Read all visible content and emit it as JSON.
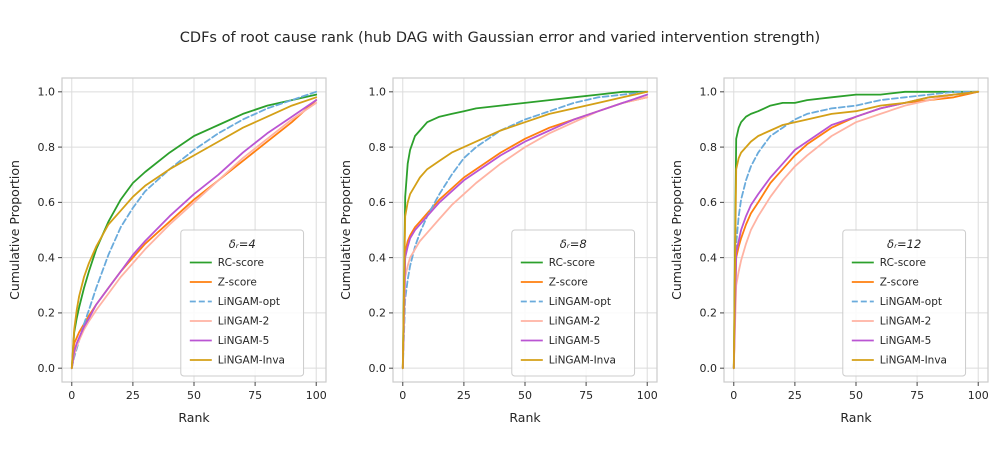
{
  "figure": {
    "title": "CDFs of root cause rank (hub DAG with Gaussian error and varied intervention strength)",
    "xlabel": "Rank",
    "ylabel": "Cumulative Proportion",
    "x_ticks": [
      0,
      25,
      50,
      75,
      100
    ],
    "x_tick_labels": [
      "0",
      "25",
      "50",
      "75",
      "100"
    ],
    "y_ticks": [
      0.0,
      0.2,
      0.4,
      0.6,
      0.8,
      1.0
    ],
    "y_tick_labels": [
      "0.0",
      "0.2",
      "0.4",
      "0.6",
      "0.8",
      "1.0"
    ],
    "grid_color": "#dcdcdc",
    "spine_color": "#cccccc",
    "text_color": "#262626",
    "background_color": "#ffffff"
  },
  "chart_data": {
    "type": "line",
    "note": "Empirical CDF curves; y values estimated from pixels at shared x ranks",
    "x": [
      0,
      1,
      2,
      3,
      5,
      7,
      10,
      15,
      20,
      25,
      30,
      40,
      50,
      60,
      70,
      80,
      90,
      100
    ],
    "xlim": [
      0,
      100
    ],
    "ylim": [
      0.0,
      1.0
    ],
    "grid": true,
    "legend_position": "lower-right-inside",
    "subplots": [
      {
        "legend_title": "δᵣ=4",
        "series": [
          {
            "name": "RC-score",
            "color": "#2ca02c",
            "dash": "solid",
            "y": [
              0.0,
              0.13,
              0.18,
              0.22,
              0.29,
              0.35,
              0.43,
              0.53,
              0.61,
              0.67,
              0.71,
              0.78,
              0.84,
              0.88,
              0.92,
              0.95,
              0.97,
              0.99
            ]
          },
          {
            "name": "Z-score",
            "color": "#ff7f0e",
            "dash": "solid",
            "y": [
              0.0,
              0.09,
              0.11,
              0.13,
              0.16,
              0.19,
              0.23,
              0.29,
              0.35,
              0.4,
              0.45,
              0.53,
              0.61,
              0.68,
              0.75,
              0.82,
              0.89,
              0.97
            ]
          },
          {
            "name": "LiNGAM-opt",
            "color": "#6aabdc",
            "dash": "dashed",
            "y": [
              0.0,
              0.04,
              0.07,
              0.1,
              0.16,
              0.21,
              0.29,
              0.41,
              0.51,
              0.58,
              0.64,
              0.72,
              0.79,
              0.85,
              0.9,
              0.94,
              0.97,
              1.0
            ]
          },
          {
            "name": "LiNGAM-2",
            "color": "#ffb3a3",
            "dash": "solid",
            "y": [
              0.0,
              0.05,
              0.08,
              0.1,
              0.14,
              0.17,
              0.21,
              0.27,
              0.33,
              0.38,
              0.43,
              0.52,
              0.6,
              0.68,
              0.76,
              0.83,
              0.9,
              0.96
            ]
          },
          {
            "name": "LiNGAM-5",
            "color": "#ba55d3",
            "dash": "solid",
            "y": [
              0.0,
              0.06,
              0.09,
              0.11,
              0.15,
              0.18,
              0.23,
              0.29,
              0.35,
              0.41,
              0.46,
              0.55,
              0.63,
              0.7,
              0.78,
              0.85,
              0.91,
              0.97
            ]
          },
          {
            "name": "LiNGAM-Inva",
            "color": "#d4a017",
            "dash": "solid",
            "y": [
              0.0,
              0.14,
              0.21,
              0.26,
              0.33,
              0.38,
              0.44,
              0.52,
              0.57,
              0.62,
              0.66,
              0.72,
              0.77,
              0.82,
              0.87,
              0.91,
              0.95,
              0.98
            ]
          }
        ]
      },
      {
        "legend_title": "δᵣ=8",
        "series": [
          {
            "name": "RC-score",
            "color": "#2ca02c",
            "dash": "solid",
            "y": [
              0.0,
              0.62,
              0.74,
              0.79,
              0.84,
              0.86,
              0.89,
              0.91,
              0.92,
              0.93,
              0.94,
              0.95,
              0.96,
              0.97,
              0.98,
              0.99,
              1.0,
              1.0
            ]
          },
          {
            "name": "Z-score",
            "color": "#ff7f0e",
            "dash": "solid",
            "y": [
              0.0,
              0.42,
              0.46,
              0.48,
              0.51,
              0.53,
              0.56,
              0.61,
              0.65,
              0.69,
              0.72,
              0.78,
              0.83,
              0.87,
              0.9,
              0.93,
              0.96,
              0.98
            ]
          },
          {
            "name": "LiNGAM-opt",
            "color": "#6aabdc",
            "dash": "dashed",
            "y": [
              0.0,
              0.25,
              0.32,
              0.37,
              0.44,
              0.49,
              0.55,
              0.63,
              0.7,
              0.76,
              0.8,
              0.86,
              0.9,
              0.93,
              0.96,
              0.98,
              0.99,
              1.0
            ]
          },
          {
            "name": "LiNGAM-2",
            "color": "#ffb3a3",
            "dash": "solid",
            "y": [
              0.0,
              0.33,
              0.37,
              0.4,
              0.43,
              0.46,
              0.49,
              0.54,
              0.59,
              0.63,
              0.67,
              0.74,
              0.8,
              0.85,
              0.89,
              0.93,
              0.96,
              0.98
            ]
          },
          {
            "name": "LiNGAM-5",
            "color": "#ba55d3",
            "dash": "solid",
            "y": [
              0.0,
              0.4,
              0.44,
              0.47,
              0.5,
              0.52,
              0.55,
              0.6,
              0.64,
              0.68,
              0.71,
              0.77,
              0.82,
              0.86,
              0.9,
              0.93,
              0.96,
              0.99
            ]
          },
          {
            "name": "LiNGAM-Inva",
            "color": "#d4a017",
            "dash": "solid",
            "y": [
              0.0,
              0.55,
              0.6,
              0.63,
              0.66,
              0.69,
              0.72,
              0.75,
              0.78,
              0.8,
              0.82,
              0.86,
              0.89,
              0.92,
              0.94,
              0.96,
              0.98,
              1.0
            ]
          }
        ]
      },
      {
        "legend_title": "δᵣ=12",
        "series": [
          {
            "name": "RC-score",
            "color": "#2ca02c",
            "dash": "solid",
            "y": [
              0.0,
              0.83,
              0.87,
              0.89,
              0.91,
              0.92,
              0.93,
              0.95,
              0.96,
              0.96,
              0.97,
              0.98,
              0.99,
              0.99,
              1.0,
              1.0,
              1.0,
              1.0
            ]
          },
          {
            "name": "Z-score",
            "color": "#ff7f0e",
            "dash": "solid",
            "y": [
              0.0,
              0.4,
              0.44,
              0.47,
              0.52,
              0.56,
              0.6,
              0.67,
              0.72,
              0.77,
              0.81,
              0.87,
              0.91,
              0.94,
              0.96,
              0.97,
              0.98,
              1.0
            ]
          },
          {
            "name": "LiNGAM-opt",
            "color": "#6aabdc",
            "dash": "dashed",
            "y": [
              0.0,
              0.45,
              0.55,
              0.61,
              0.68,
              0.73,
              0.78,
              0.84,
              0.87,
              0.9,
              0.92,
              0.94,
              0.95,
              0.97,
              0.98,
              0.99,
              1.0,
              1.0
            ]
          },
          {
            "name": "LiNGAM-2",
            "color": "#ffb3a3",
            "dash": "solid",
            "y": [
              0.0,
              0.3,
              0.35,
              0.39,
              0.45,
              0.5,
              0.55,
              0.62,
              0.68,
              0.73,
              0.77,
              0.84,
              0.89,
              0.92,
              0.95,
              0.97,
              0.99,
              1.0
            ]
          },
          {
            "name": "LiNGAM-5",
            "color": "#ba55d3",
            "dash": "solid",
            "y": [
              0.0,
              0.42,
              0.46,
              0.5,
              0.55,
              0.59,
              0.63,
              0.69,
              0.74,
              0.79,
              0.82,
              0.88,
              0.91,
              0.94,
              0.96,
              0.98,
              0.99,
              1.0
            ]
          },
          {
            "name": "LiNGAM-Inva",
            "color": "#d4a017",
            "dash": "solid",
            "y": [
              0.0,
              0.72,
              0.76,
              0.78,
              0.8,
              0.82,
              0.84,
              0.86,
              0.88,
              0.89,
              0.9,
              0.92,
              0.93,
              0.95,
              0.96,
              0.98,
              0.99,
              1.0
            ]
          }
        ]
      }
    ]
  }
}
